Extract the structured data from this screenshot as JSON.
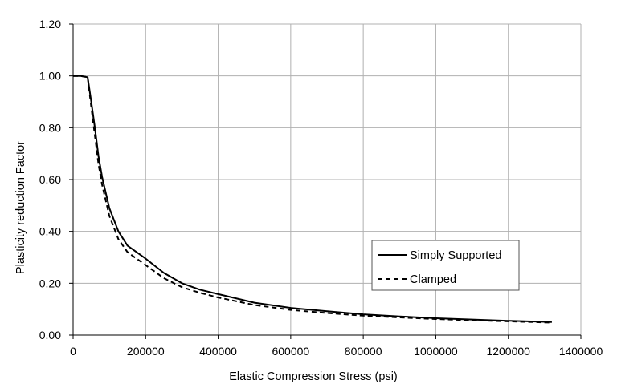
{
  "colors": {
    "background": "#ffffff",
    "grid": "#b0b0b0",
    "axis": "#000000",
    "series": "#000000"
  },
  "chart_data": {
    "type": "line",
    "xlabel": "Elastic Compression Stress (psi)",
    "ylabel": "Plasticity reduction Factor",
    "xlim": [
      0,
      1400000
    ],
    "ylim": [
      0,
      1.2
    ],
    "grid": true,
    "legend_position": "bottom-right",
    "xticks": [
      0,
      200000,
      400000,
      600000,
      800000,
      1000000,
      1200000,
      1400000
    ],
    "xtick_labels": [
      "0",
      "200000",
      "400000",
      "600000",
      "800000",
      "1000000",
      "1200000",
      "1400000"
    ],
    "yticks": [
      0,
      0.2,
      0.4,
      0.6,
      0.8,
      1.0,
      1.2
    ],
    "ytick_labels": [
      "0.00",
      "0.20",
      "0.40",
      "0.60",
      "0.80",
      "1.00",
      "1.20"
    ],
    "series": [
      {
        "name": "Simply Supported",
        "line_style": "solid",
        "points": [
          [
            0,
            1.0
          ],
          [
            20000,
            1.0
          ],
          [
            40000,
            0.995
          ],
          [
            50000,
            0.9
          ],
          [
            60000,
            0.8
          ],
          [
            70000,
            0.69
          ],
          [
            80000,
            0.61
          ],
          [
            100000,
            0.49
          ],
          [
            125000,
            0.4
          ],
          [
            150000,
            0.345
          ],
          [
            200000,
            0.295
          ],
          [
            250000,
            0.24
          ],
          [
            300000,
            0.2
          ],
          [
            350000,
            0.175
          ],
          [
            400000,
            0.158
          ],
          [
            500000,
            0.125
          ],
          [
            600000,
            0.105
          ],
          [
            700000,
            0.092
          ],
          [
            800000,
            0.08
          ],
          [
            900000,
            0.072
          ],
          [
            1000000,
            0.065
          ],
          [
            1100000,
            0.06
          ],
          [
            1200000,
            0.055
          ],
          [
            1320000,
            0.05
          ]
        ]
      },
      {
        "name": "Clamped",
        "line_style": "dashed",
        "points": [
          [
            0,
            1.0
          ],
          [
            20000,
            1.0
          ],
          [
            40000,
            0.995
          ],
          [
            50000,
            0.88
          ],
          [
            60000,
            0.77
          ],
          [
            70000,
            0.66
          ],
          [
            80000,
            0.58
          ],
          [
            100000,
            0.46
          ],
          [
            125000,
            0.37
          ],
          [
            150000,
            0.32
          ],
          [
            200000,
            0.27
          ],
          [
            250000,
            0.22
          ],
          [
            300000,
            0.185
          ],
          [
            350000,
            0.163
          ],
          [
            400000,
            0.145
          ],
          [
            500000,
            0.116
          ],
          [
            600000,
            0.097
          ],
          [
            700000,
            0.085
          ],
          [
            800000,
            0.075
          ],
          [
            900000,
            0.068
          ],
          [
            1000000,
            0.062
          ],
          [
            1100000,
            0.057
          ],
          [
            1200000,
            0.053
          ],
          [
            1320000,
            0.048
          ]
        ]
      }
    ]
  }
}
